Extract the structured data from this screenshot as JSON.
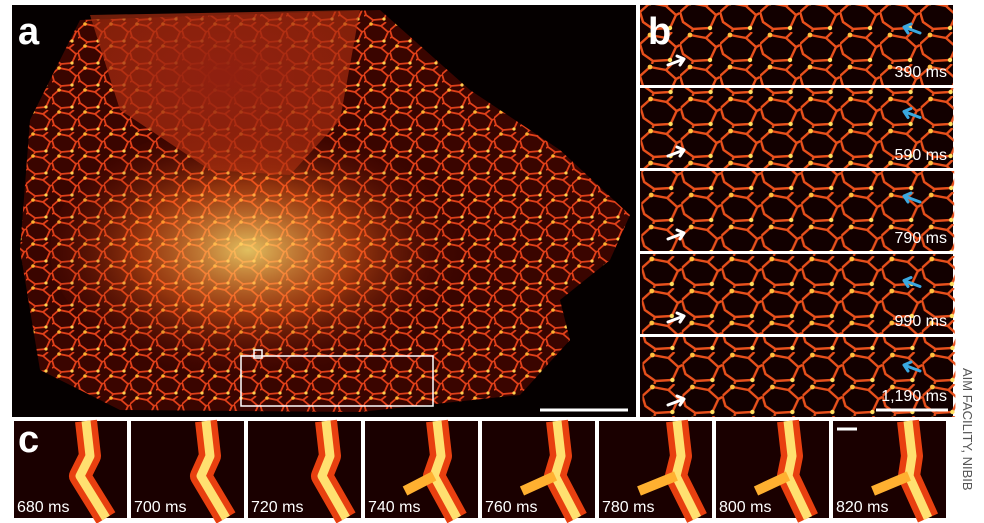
{
  "panels": {
    "a": {
      "label": "a"
    },
    "b": {
      "label": "b",
      "frames": [
        "390 ms",
        "590 ms",
        "790 ms",
        "990 ms",
        "1,190 ms"
      ]
    },
    "c": {
      "label": "c",
      "frames": [
        "680 ms",
        "700 ms",
        "720 ms",
        "740 ms",
        "760 ms",
        "780 ms",
        "800 ms",
        "820 ms"
      ]
    }
  },
  "credit": "AIM FACILITY, NIBIB"
}
